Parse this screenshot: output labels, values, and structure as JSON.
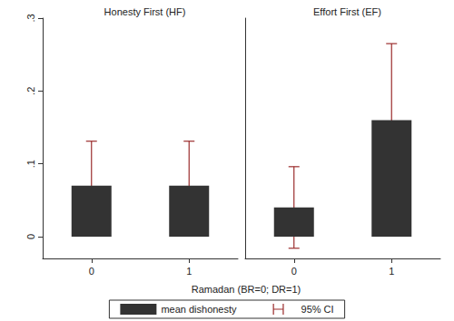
{
  "chart_data": {
    "type": "bar",
    "xlabel": "Ramadan (BR=0; DR=1)",
    "ylim": [
      -0.03,
      0.3
    ],
    "yticks": [
      0,
      {
        "value": 0.1,
        "label": ".1"
      },
      {
        "value": 0.2,
        "label": ".2"
      },
      {
        "value": 0.3,
        "label": ".3"
      }
    ],
    "legend": "bottom",
    "grid": false,
    "panels": [
      {
        "title": "Honesty First (HF)",
        "categories": [
          "0",
          "1"
        ],
        "series": [
          {
            "name": "mean dishonesty",
            "color": "#333333",
            "values": [
              0.07,
              0.07
            ],
            "ci_name": "95% CI",
            "ci_color": "#9b2d2d",
            "ci_lower": [
              0.01,
              0.01
            ],
            "ci_upper": [
              0.131,
              0.131
            ]
          }
        ]
      },
      {
        "title": "Effort First (EF)",
        "categories": [
          "0",
          "1"
        ],
        "series": [
          {
            "name": "mean dishonesty",
            "color": "#333333",
            "values": [
              0.04,
              0.16
            ],
            "ci_name": "95% CI",
            "ci_color": "#9b2d2d",
            "ci_lower": [
              -0.016,
              0.055
            ],
            "ci_upper": [
              0.096,
              0.265
            ]
          }
        ]
      }
    ]
  }
}
